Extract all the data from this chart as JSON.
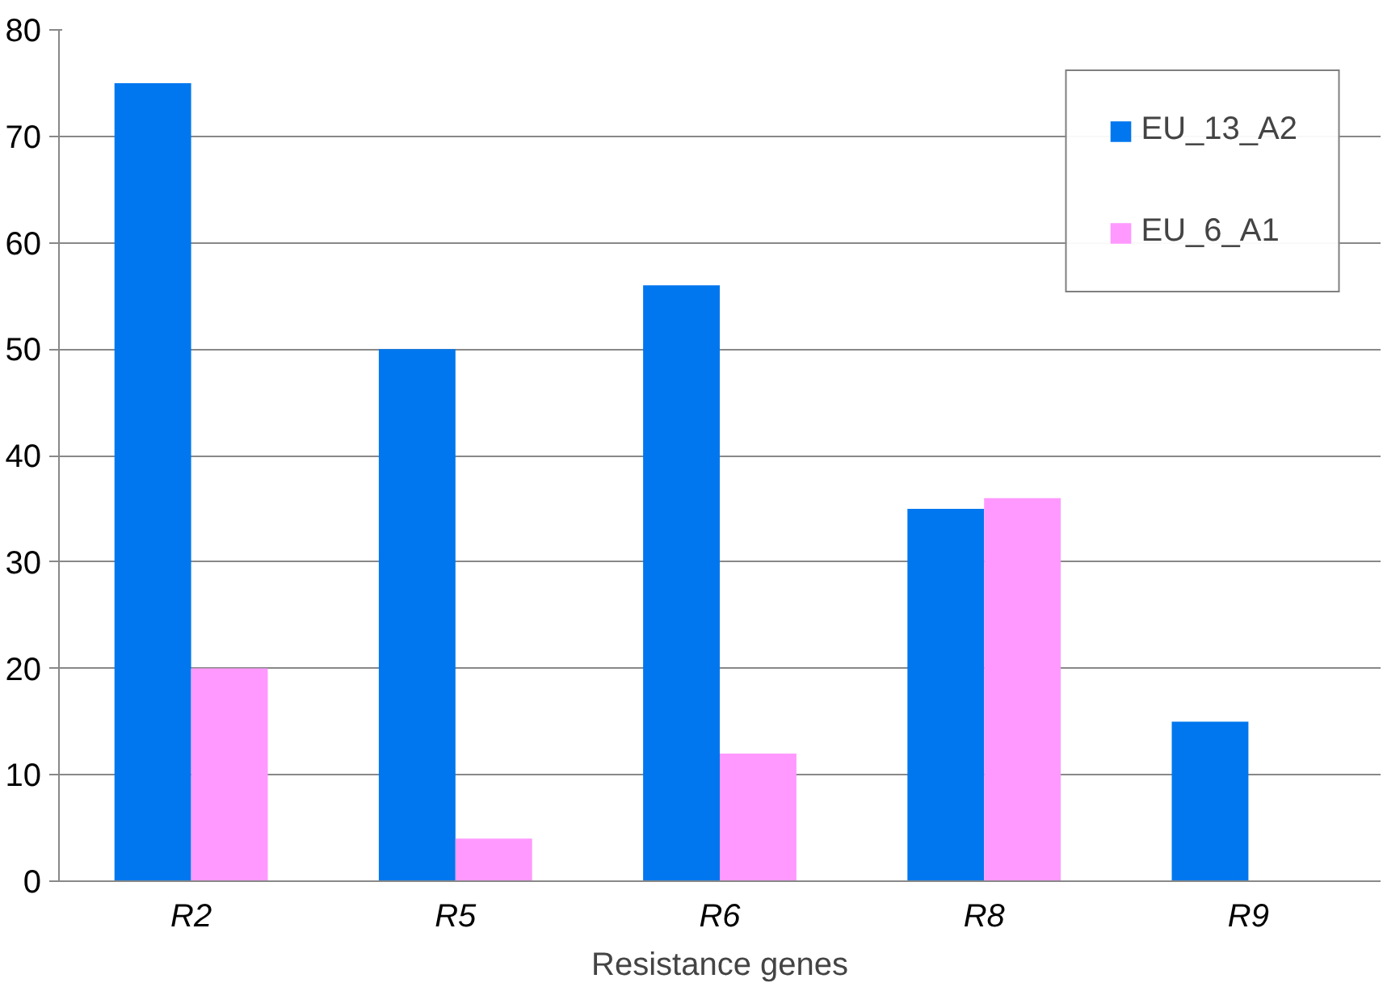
{
  "chart_data": {
    "type": "bar",
    "xlabel": "Resistance genes",
    "categories": [
      "R2",
      "R5",
      "R6",
      "R8",
      "R9"
    ],
    "series": [
      {
        "name": "EU_13_A2",
        "color": "#0077ee",
        "values": [
          75,
          50,
          56,
          35,
          15
        ]
      },
      {
        "name": "EU_6_A1",
        "color": "#ff99ff",
        "values": [
          20,
          4,
          12,
          36,
          0
        ]
      }
    ],
    "ylim": [
      0,
      80
    ],
    "yticks": [
      0,
      10,
      20,
      30,
      40,
      50,
      60,
      70,
      80
    ],
    "grid": "y",
    "legend": "top right"
  }
}
